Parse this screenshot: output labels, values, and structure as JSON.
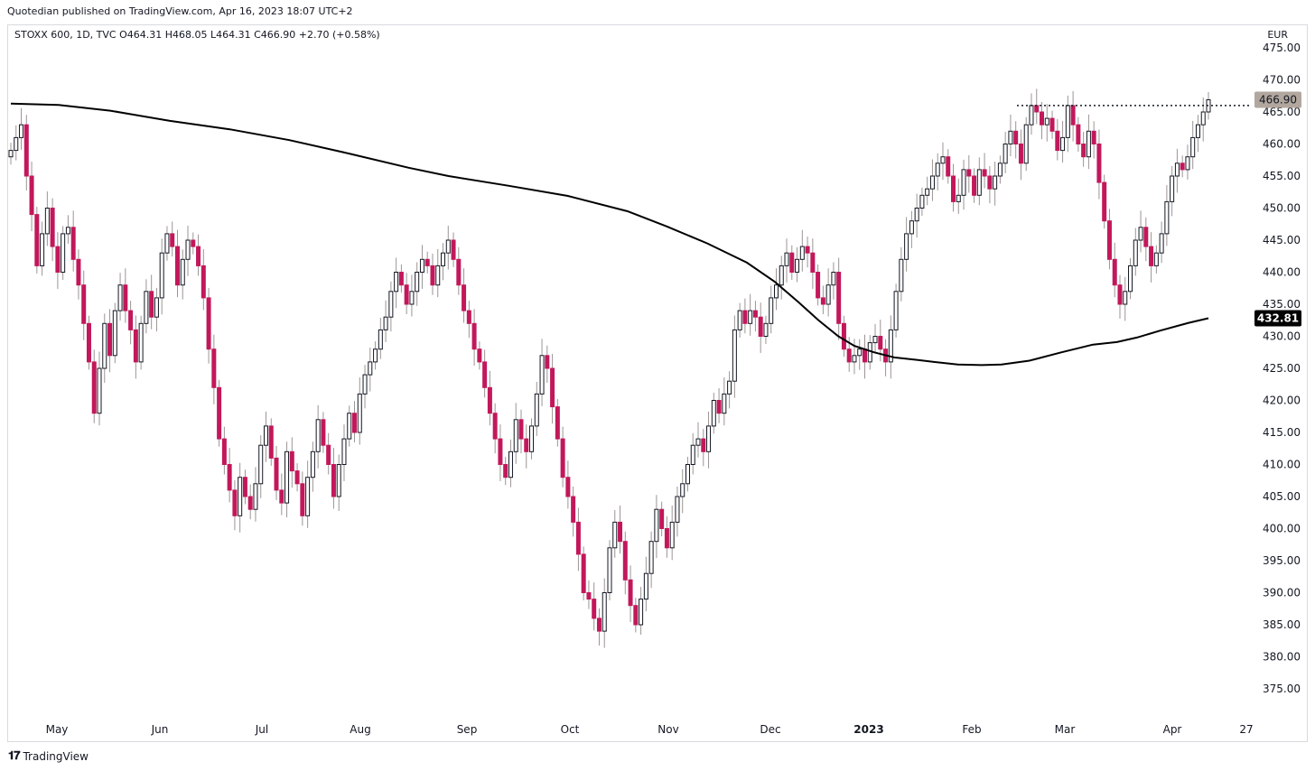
{
  "header": {
    "publisher": "Quotedian published on TradingView.com, Apr 16, 2023 18:07 UTC+2",
    "legend": "STOXX 600, 1D, TVC  O464.31  H468.05  L464.31  C466.90  +2.70 (+0.58%)",
    "currency": "EUR"
  },
  "footer": {
    "logo_text": "TradingView",
    "logo_icon": "tradingview-logo-icon"
  },
  "colors": {
    "up": "#131722",
    "down": "#c2185b",
    "wick": "#9c9594",
    "ma": "#000000",
    "grid": "#ffffff",
    "last_price_bg": "#b2a79e",
    "ma_label_bg": "#000000"
  },
  "chart_data": {
    "type": "candlestick",
    "symbol": "STOXX 600",
    "interval": "1D",
    "exchange": "TVC",
    "ohlc_last": {
      "open": 464.31,
      "high": 468.05,
      "low": 464.31,
      "close": 466.9,
      "change": 2.7,
      "change_pct": 0.58
    },
    "y_ticks": [
      375,
      380,
      385,
      390,
      395,
      400,
      405,
      410,
      415,
      420,
      425,
      430,
      435,
      440,
      445,
      450,
      455,
      460,
      465,
      470,
      475
    ],
    "y_tick_labels": [
      "375.00",
      "380.00",
      "385.00",
      "390.00",
      "395.00",
      "400.00",
      "405.00",
      "410.00",
      "415.00",
      "420.00",
      "425.00",
      "430.00",
      "435.00",
      "440.00",
      "445.00",
      "450.00",
      "455.00",
      "460.00",
      "465.00",
      "470.00",
      "475.00"
    ],
    "ylim": [
      372,
      477
    ],
    "x_labels": [
      "May",
      "Jun",
      "Jul",
      "Aug",
      "Sep",
      "Oct",
      "Nov",
      "Dec",
      "2023",
      "Feb",
      "Mar",
      "Apr",
      "27"
    ],
    "x_label_bold": [
      false,
      false,
      false,
      false,
      false,
      false,
      false,
      false,
      true,
      false,
      false,
      false,
      false
    ],
    "last_price_label": "466.90",
    "last_price": 466.9,
    "ma_label": "432.81",
    "ma_last": 432.81,
    "resistance_level": 466.0,
    "closes": [
      459,
      461,
      463,
      455,
      449,
      441,
      446,
      450,
      444,
      440,
      446,
      447,
      442,
      438,
      432,
      426,
      418,
      425,
      432,
      427,
      434,
      438,
      434,
      431,
      426,
      432,
      437,
      433,
      436,
      443,
      446,
      444,
      438,
      442,
      445,
      444,
      441,
      436,
      428,
      422,
      414,
      410,
      406,
      402,
      408,
      405,
      403,
      407,
      413,
      416,
      411,
      406,
      404,
      412,
      409,
      407,
      402,
      408,
      412,
      417,
      413,
      410,
      405,
      410,
      414,
      418,
      415,
      421,
      424,
      426,
      428,
      431,
      433,
      437,
      440,
      438,
      435,
      437,
      440,
      442,
      441,
      438,
      441,
      443,
      445,
      442,
      438,
      434,
      432,
      428,
      426,
      422,
      418,
      414,
      410,
      408,
      412,
      417,
      414,
      412,
      416,
      421,
      427,
      425,
      419,
      414,
      408,
      405,
      401,
      396,
      390,
      389,
      386,
      384,
      390,
      397,
      401,
      398,
      392,
      388,
      385,
      389,
      393,
      398,
      403,
      400,
      397,
      401,
      405,
      407,
      410,
      413,
      414,
      412,
      416,
      420,
      418,
      421,
      423,
      431,
      434,
      432,
      434,
      433,
      430,
      432,
      436,
      438,
      441,
      443,
      440,
      442,
      444,
      443,
      440,
      436,
      435,
      438,
      440,
      432,
      428,
      426,
      427,
      428,
      426,
      429,
      430,
      428,
      426,
      431,
      437,
      442,
      446,
      448,
      450,
      452,
      453,
      455,
      457,
      458,
      455,
      451,
      452,
      456,
      455,
      452,
      456,
      455,
      453,
      455,
      457,
      460,
      462,
      460,
      457,
      463,
      466,
      465,
      463,
      464,
      462,
      459,
      461,
      466,
      463,
      460,
      458,
      462,
      460,
      454,
      448,
      442,
      438,
      435,
      437,
      441,
      445,
      447,
      444,
      441,
      443,
      446,
      451,
      455,
      457,
      456,
      458,
      461,
      463,
      465,
      466.9
    ],
    "ma_points": [
      [
        0,
        466.3
      ],
      [
        12,
        466.1
      ],
      [
        25,
        465.2
      ],
      [
        40,
        463.6
      ],
      [
        55,
        462.3
      ],
      [
        70,
        460.6
      ],
      [
        85,
        458.5
      ],
      [
        100,
        456.3
      ],
      [
        110,
        455.0
      ],
      [
        125,
        453.5
      ],
      [
        140,
        451.9
      ],
      [
        155,
        449.5
      ],
      [
        165,
        447.1
      ],
      [
        175,
        444.5
      ],
      [
        185,
        441.5
      ],
      [
        192,
        438.5
      ],
      [
        198,
        435.3
      ],
      [
        203,
        432.5
      ],
      [
        208,
        430.0
      ],
      [
        212,
        428.5
      ],
      [
        217,
        427.5
      ],
      [
        222,
        426.7
      ],
      [
        228,
        426.3
      ],
      [
        232,
        426.0
      ],
      [
        238,
        425.6
      ],
      [
        244,
        425.5
      ],
      [
        249,
        425.6
      ],
      [
        256,
        426.2
      ],
      [
        264,
        427.5
      ],
      [
        272,
        428.7
      ],
      [
        278,
        429.1
      ],
      [
        283,
        429.8
      ],
      [
        289,
        430.9
      ],
      [
        296,
        432.1
      ],
      [
        301,
        432.81
      ]
    ]
  }
}
